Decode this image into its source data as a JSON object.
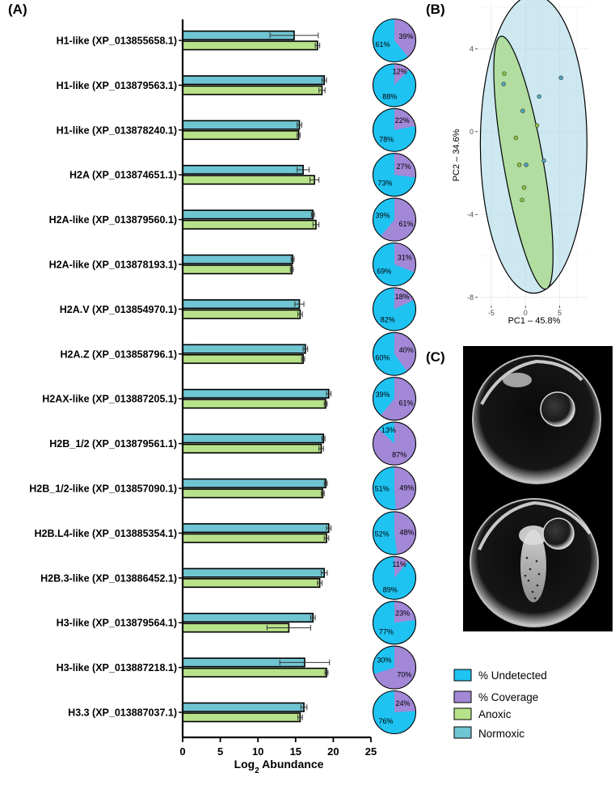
{
  "panel_labels": {
    "a": "(A)",
    "b": "(B)",
    "c": "(C)"
  },
  "colors": {
    "normoxic": "#6fc5d2",
    "anoxic": "#b8e28a",
    "undetected": "#1ec3f2",
    "coverage": "#a288d6",
    "pca_normoxic_ellipse": "#acd8e6",
    "pca_anoxic_ellipse": "#a7da86",
    "pca_grid": "#ebebeb",
    "embryo_bg": "#000000"
  },
  "legend": {
    "undetected": "% Undetected",
    "coverage": "% Coverage",
    "anoxic": "Anoxic",
    "normoxic": "Normoxic"
  },
  "images": {
    "embryo_top": "embryo with yolk sphere, normoxic",
    "embryo_bottom": "embryo with yolk sphere, anoxic"
  },
  "chart_data": [
    {
      "type": "bar",
      "orientation": "horizontal",
      "title": "",
      "xlabel": "Log2 Abundance",
      "xlabel_main": "Log",
      "xlabel_sub": "2",
      "xlabel_rest": " Abundance",
      "xlim": [
        0,
        25
      ],
      "xticks": [
        0,
        5,
        10,
        15,
        20,
        25
      ],
      "categories": [
        "H1-like (XP_013855658.1)",
        "H1-like (XP_013879563.1)",
        "H1-like (XP_013878240.1)",
        "H2A (XP_013874651.1)",
        "H2A-like (XP_013879560.1)",
        "H2A-like (XP_013878193.1)",
        "H2A.V (XP_013854970.1)",
        "H2A.Z (XP_013858796.1)",
        "H2AX-like (XP_013887205.1)",
        "H2B_1/2 (XP_013879561.1)",
        "H2B_1/2-like (XP_013857090.1)",
        "H2B.L4-like (XP_013885354.1)",
        "H2B.3-like (XP_013886452.1)",
        "H3-like (XP_013879564.1)",
        "H3-like (XP_013887218.1)",
        "H3.3 (XP_013887037.1)"
      ],
      "series": [
        {
          "name": "Normoxic",
          "values": [
            14.8,
            18.8,
            15.5,
            16.0,
            17.3,
            14.6,
            15.5,
            16.3,
            19.4,
            18.7,
            19.0,
            19.4,
            18.8,
            17.3,
            16.2,
            16.1
          ],
          "errors": [
            3.2,
            0.3,
            0.3,
            0.8,
            0.2,
            0.2,
            0.6,
            0.3,
            0.3,
            0.2,
            0.2,
            0.3,
            0.4,
            0.3,
            3.3,
            0.4
          ]
        },
        {
          "name": "Anoxic",
          "values": [
            17.9,
            18.5,
            15.4,
            17.5,
            17.7,
            14.5,
            15.6,
            16.0,
            19.0,
            18.4,
            18.6,
            19.1,
            18.2,
            14.1,
            19.1,
            15.6
          ],
          "errors": [
            0.3,
            0.4,
            0.2,
            0.6,
            0.4,
            0.2,
            0.3,
            0.2,
            0.2,
            0.3,
            0.2,
            0.3,
            0.3,
            2.9,
            0.2,
            0.3
          ]
        }
      ]
    },
    {
      "type": "pie",
      "description": "Per-protein sequence coverage pies",
      "labels": [
        "% Undetected",
        "% Coverage"
      ],
      "undetected": [
        61,
        88,
        78,
        73,
        39,
        69,
        82,
        60,
        39,
        13,
        51,
        52,
        89,
        77,
        30,
        76
      ],
      "coverage": [
        39,
        12,
        22,
        27,
        61,
        31,
        18,
        40,
        61,
        87,
        49,
        48,
        11,
        23,
        70,
        24
      ],
      "undetected_text": [
        "61%",
        "88%",
        "78%",
        "73%",
        "39%",
        "69%",
        "82%",
        "60%",
        "39%",
        "13%",
        "51%",
        "52%",
        "89%",
        "77%",
        "30%",
        "76%"
      ],
      "coverage_text": [
        "39%",
        "12%",
        "22%",
        "27%",
        "61%",
        "31%",
        "18%",
        "40%",
        "61%",
        "87%",
        "49%",
        "48%",
        "11%",
        "23%",
        "70%",
        "24%"
      ]
    },
    {
      "type": "scatter",
      "title": "",
      "xlabel": "PC1 – 45.8%",
      "ylabel": "PC2 – 34.6%",
      "xlim": [
        -7,
        9.2
      ],
      "ylim": [
        -8.4,
        6.2
      ],
      "xticks": [
        -5,
        0,
        5
      ],
      "yticks": [
        -8,
        -4,
        0,
        4
      ],
      "xtick_labels": [
        "-5",
        "0",
        "5"
      ],
      "ytick_labels": [
        "-8",
        "-4",
        "0",
        "4"
      ],
      "series": [
        {
          "name": "Normoxic",
          "points": [
            {
              "x": -3.2,
              "y": 2.3
            },
            {
              "x": 5.2,
              "y": 2.6
            },
            {
              "x": 2.0,
              "y": 1.7
            },
            {
              "x": -0.4,
              "y": 1.0
            },
            {
              "x": 0.1,
              "y": -1.6
            },
            {
              "x": 2.7,
              "y": -1.4
            }
          ],
          "ellipse": {
            "cx": 1.2,
            "cy": -0.6,
            "rx": 7.8,
            "ry": 7.2,
            "angle_deg": 0
          }
        },
        {
          "name": "Anoxic",
          "points": [
            {
              "x": -3.1,
              "y": 2.8
            },
            {
              "x": 1.7,
              "y": 0.3
            },
            {
              "x": -1.4,
              "y": -0.3
            },
            {
              "x": -0.9,
              "y": -1.6
            },
            {
              "x": -0.2,
              "y": -2.7
            },
            {
              "x": -0.5,
              "y": -3.3
            }
          ],
          "ellipse": {
            "cx": -0.3,
            "cy": -1.5,
            "rx": 2.9,
            "ry": 6.2,
            "angle_deg": -10
          }
        }
      ]
    }
  ]
}
